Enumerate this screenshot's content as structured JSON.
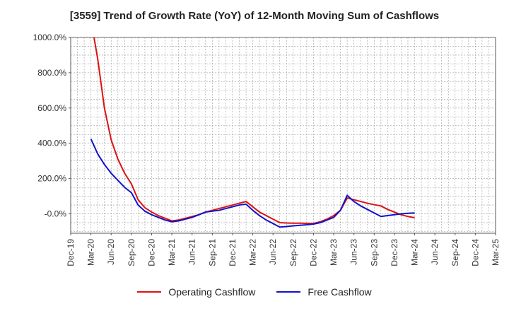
{
  "chart_data": {
    "type": "line",
    "title": "[3559]  Trend of Growth Rate (YoY) of 12-Month Moving Sum of Cashflows",
    "xlabel": "",
    "ylabel": "",
    "ylim": [
      -110,
      1000
    ],
    "y_ticks": [
      "-0.0%",
      "200.0%",
      "400.0%",
      "600.0%",
      "800.0%",
      "1000.0%"
    ],
    "y_tick_values": [
      0,
      200,
      400,
      600,
      800,
      1000
    ],
    "x_ticks": [
      "Dec-19",
      "Mar-20",
      "Jun-20",
      "Sep-20",
      "Dec-20",
      "Mar-21",
      "Jun-21",
      "Sep-21",
      "Dec-21",
      "Mar-22",
      "Jun-22",
      "Sep-22",
      "Dec-22",
      "Mar-23",
      "Jun-23",
      "Sep-23",
      "Dec-23",
      "Mar-24",
      "Jun-24",
      "Sep-24",
      "Dec-24",
      "Mar-25"
    ],
    "x_range_months": [
      0,
      63
    ],
    "grid": true,
    "legend_position": "bottom",
    "series": [
      {
        "name": "Operating Cashflow",
        "color": "#dd1111",
        "points": [
          [
            3,
            1100
          ],
          [
            4,
            880
          ],
          [
            5,
            600
          ],
          [
            6,
            420
          ],
          [
            7,
            310
          ],
          [
            8,
            230
          ],
          [
            9,
            170
          ],
          [
            10,
            80
          ],
          [
            11,
            35
          ],
          [
            12,
            10
          ],
          [
            13,
            -10
          ],
          [
            14,
            -25
          ],
          [
            15,
            -40
          ],
          [
            16,
            -35
          ],
          [
            17,
            -25
          ],
          [
            18,
            -15
          ],
          [
            19,
            -5
          ],
          [
            20,
            10
          ],
          [
            21,
            20
          ],
          [
            22,
            30
          ],
          [
            23,
            40
          ],
          [
            24,
            50
          ],
          [
            25,
            60
          ],
          [
            26,
            70
          ],
          [
            27,
            40
          ],
          [
            28,
            10
          ],
          [
            29,
            -10
          ],
          [
            30,
            -30
          ],
          [
            31,
            -50
          ],
          [
            32,
            -52
          ],
          [
            33,
            -53
          ],
          [
            34,
            -53
          ],
          [
            35,
            -54
          ],
          [
            36,
            -55
          ],
          [
            37,
            -45
          ],
          [
            38,
            -30
          ],
          [
            39,
            -10
          ],
          [
            40,
            20
          ],
          [
            41,
            90
          ],
          [
            42,
            80
          ],
          [
            43,
            70
          ],
          [
            44,
            60
          ],
          [
            45,
            52
          ],
          [
            46,
            45
          ],
          [
            47,
            25
          ],
          [
            48,
            10
          ],
          [
            49,
            -5
          ],
          [
            50,
            -15
          ],
          [
            51,
            -22
          ]
        ]
      },
      {
        "name": "Free Cashflow",
        "color": "#1111cc",
        "points": [
          [
            3,
            425
          ],
          [
            4,
            340
          ],
          [
            5,
            280
          ],
          [
            6,
            230
          ],
          [
            7,
            190
          ],
          [
            8,
            150
          ],
          [
            9,
            120
          ],
          [
            10,
            50
          ],
          [
            11,
            15
          ],
          [
            12,
            -5
          ],
          [
            13,
            -20
          ],
          [
            14,
            -35
          ],
          [
            15,
            -45
          ],
          [
            16,
            -40
          ],
          [
            17,
            -30
          ],
          [
            18,
            -20
          ],
          [
            19,
            -5
          ],
          [
            20,
            10
          ],
          [
            21,
            15
          ],
          [
            22,
            20
          ],
          [
            23,
            30
          ],
          [
            24,
            40
          ],
          [
            25,
            50
          ],
          [
            26,
            55
          ],
          [
            27,
            20
          ],
          [
            28,
            -10
          ],
          [
            29,
            -35
          ],
          [
            30,
            -55
          ],
          [
            31,
            -75
          ],
          [
            32,
            -72
          ],
          [
            33,
            -68
          ],
          [
            34,
            -65
          ],
          [
            35,
            -62
          ],
          [
            36,
            -58
          ],
          [
            37,
            -50
          ],
          [
            38,
            -35
          ],
          [
            39,
            -20
          ],
          [
            40,
            20
          ],
          [
            41,
            105
          ],
          [
            42,
            70
          ],
          [
            43,
            45
          ],
          [
            44,
            25
          ],
          [
            45,
            5
          ],
          [
            46,
            -15
          ],
          [
            47,
            -10
          ],
          [
            48,
            -5
          ],
          [
            49,
            0
          ],
          [
            50,
            3
          ],
          [
            51,
            5
          ]
        ]
      }
    ]
  }
}
